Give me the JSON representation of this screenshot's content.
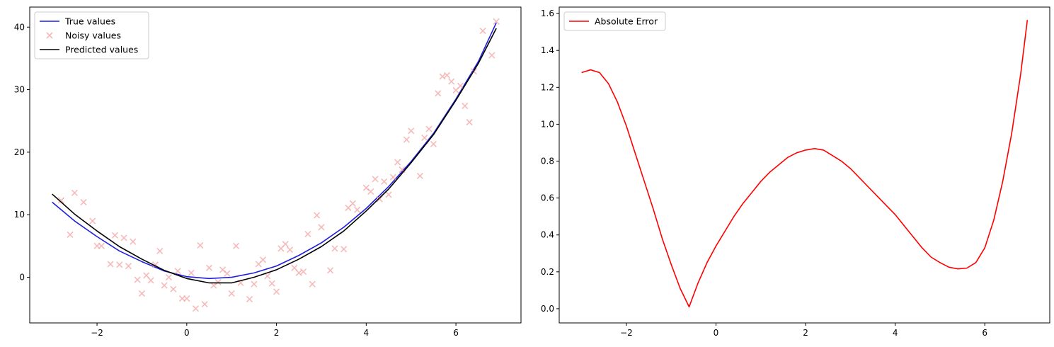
{
  "chart_data": [
    {
      "type": "line",
      "xlim": [
        -3.5,
        7.45
      ],
      "ylim": [
        -7.3,
        43.2
      ],
      "xticks": [
        -2,
        0,
        2,
        4,
        6
      ],
      "xtick_labels": [
        "−2",
        "0",
        "2",
        "4",
        "6"
      ],
      "yticks": [
        0,
        10,
        20,
        30,
        40
      ],
      "ytick_labels": [
        "0",
        "10",
        "20",
        "30",
        "40"
      ],
      "grid": false,
      "legend_position": "top-left",
      "legend": [
        "True values",
        "Noisy values",
        "Predicted values"
      ],
      "series": [
        {
          "name": "True values",
          "type": "line",
          "color": "#1f1fe0",
          "x": [
            -3.0,
            -2.5,
            -2.0,
            -1.5,
            -1.0,
            -0.5,
            0.0,
            0.5,
            1.0,
            1.5,
            2.0,
            2.5,
            3.0,
            3.5,
            4.0,
            4.5,
            5.0,
            5.5,
            6.0,
            6.5,
            6.9
          ],
          "y": [
            12.0,
            9.0,
            6.5,
            4.2,
            2.5,
            1.0,
            0.1,
            -0.2,
            0.0,
            0.7,
            1.8,
            3.5,
            5.5,
            8.0,
            11.0,
            14.5,
            18.5,
            23.0,
            28.5,
            34.5,
            40.7
          ]
        },
        {
          "name": "Noisy values",
          "type": "scatter",
          "color": "#f4a3a3",
          "marker": "x",
          "x": [
            -2.8,
            -2.6,
            -2.5,
            -2.3,
            -2.1,
            -2.0,
            -1.9,
            -1.7,
            -1.6,
            -1.5,
            -1.4,
            -1.3,
            -1.2,
            -1.1,
            -1.0,
            -0.9,
            -0.8,
            -0.7,
            -0.6,
            -0.5,
            -0.4,
            -0.3,
            -0.2,
            -0.1,
            0.0,
            0.1,
            0.2,
            0.3,
            0.4,
            0.5,
            0.6,
            0.7,
            0.8,
            0.9,
            1.0,
            1.1,
            1.2,
            1.4,
            1.5,
            1.6,
            1.7,
            1.8,
            1.9,
            2.0,
            2.1,
            2.2,
            2.3,
            2.4,
            2.5,
            2.6,
            2.7,
            2.8,
            2.9,
            3.0,
            3.2,
            3.3,
            3.5,
            3.6,
            3.7,
            3.8,
            4.0,
            4.1,
            4.2,
            4.3,
            4.4,
            4.5,
            4.6,
            4.7,
            4.8,
            4.9,
            5.0,
            5.2,
            5.3,
            5.4,
            5.5,
            5.6,
            5.7,
            5.8,
            5.9,
            6.0,
            6.1,
            6.2,
            6.3,
            6.4,
            6.6,
            6.8,
            6.9
          ],
          "y": [
            12.3,
            6.8,
            13.5,
            12.0,
            9.0,
            5.0,
            5.0,
            2.1,
            6.7,
            2.0,
            6.3,
            1.8,
            5.7,
            -0.4,
            -2.6,
            0.3,
            -0.5,
            2.0,
            4.2,
            -1.3,
            0.0,
            -1.9,
            1.0,
            -3.4,
            -3.4,
            0.7,
            -5.0,
            5.1,
            -4.3,
            1.5,
            -1.3,
            -0.8,
            1.2,
            0.6,
            -2.6,
            5.0,
            -0.9,
            -3.5,
            -1.1,
            2.1,
            2.8,
            0.2,
            -1.0,
            -2.3,
            4.6,
            5.3,
            4.4,
            1.5,
            0.7,
            0.9,
            6.9,
            -1.1,
            9.9,
            8.0,
            1.1,
            4.6,
            4.5,
            11.1,
            11.8,
            10.8,
            14.3,
            13.7,
            15.7,
            12.5,
            15.3,
            13.2,
            16.0,
            18.4,
            17.2,
            22.0,
            23.4,
            16.2,
            22.3,
            23.7,
            21.3,
            29.4,
            32.1,
            32.3,
            31.3,
            29.9,
            30.6,
            27.4,
            24.8,
            32.9,
            39.4,
            35.5,
            40.9
          ]
        },
        {
          "name": "Predicted values",
          "type": "line",
          "color": "#000000",
          "x": [
            -3.0,
            -2.5,
            -2.0,
            -1.5,
            -1.0,
            -0.5,
            0.0,
            0.5,
            1.0,
            1.5,
            2.0,
            2.5,
            3.0,
            3.5,
            4.0,
            4.5,
            5.0,
            5.5,
            6.0,
            6.5,
            6.9
          ],
          "y": [
            13.3,
            10.1,
            7.4,
            4.9,
            2.9,
            1.1,
            -0.2,
            -0.9,
            -0.9,
            0.0,
            1.2,
            2.9,
            4.9,
            7.4,
            10.6,
            14.1,
            18.3,
            22.8,
            28.3,
            34.2,
            39.8
          ]
        }
      ]
    },
    {
      "type": "line",
      "xlim": [
        -3.5,
        7.45
      ],
      "ylim": [
        -0.077,
        1.635
      ],
      "xticks": [
        -2,
        0,
        2,
        4,
        6
      ],
      "xtick_labels": [
        "−2",
        "0",
        "2",
        "4",
        "6"
      ],
      "yticks": [
        0.0,
        0.2,
        0.4,
        0.6,
        0.8,
        1.0,
        1.2,
        1.4,
        1.6
      ],
      "ytick_labels": [
        "0.0",
        "0.2",
        "0.4",
        "0.6",
        "0.8",
        "1.0",
        "1.2",
        "1.4",
        "1.6"
      ],
      "grid": false,
      "legend_position": "top-left",
      "legend": [
        "Absolute Error"
      ],
      "series": [
        {
          "name": "Absolute Error",
          "type": "line",
          "color": "#ff0000",
          "x": [
            -3.0,
            -2.8,
            -2.6,
            -2.4,
            -2.2,
            -2.0,
            -1.8,
            -1.6,
            -1.4,
            -1.2,
            -1.0,
            -0.8,
            -0.6,
            -0.4,
            -0.2,
            0.0,
            0.2,
            0.4,
            0.6,
            0.8,
            1.0,
            1.2,
            1.4,
            1.6,
            1.8,
            2.0,
            2.2,
            2.4,
            2.6,
            2.8,
            3.0,
            3.2,
            3.4,
            3.6,
            3.8,
            4.0,
            4.2,
            4.4,
            4.6,
            4.8,
            5.0,
            5.2,
            5.4,
            5.6,
            5.8,
            6.0,
            6.2,
            6.4,
            6.6,
            6.8,
            6.95
          ],
          "y": [
            1.28,
            1.295,
            1.28,
            1.22,
            1.12,
            0.99,
            0.84,
            0.69,
            0.54,
            0.38,
            0.24,
            0.11,
            0.01,
            0.14,
            0.25,
            0.34,
            0.42,
            0.5,
            0.57,
            0.63,
            0.69,
            0.74,
            0.78,
            0.82,
            0.845,
            0.86,
            0.868,
            0.86,
            0.83,
            0.8,
            0.76,
            0.71,
            0.66,
            0.61,
            0.56,
            0.51,
            0.45,
            0.39,
            0.33,
            0.28,
            0.25,
            0.225,
            0.216,
            0.22,
            0.25,
            0.33,
            0.48,
            0.69,
            0.95,
            1.27,
            1.565
          ]
        }
      ]
    }
  ]
}
